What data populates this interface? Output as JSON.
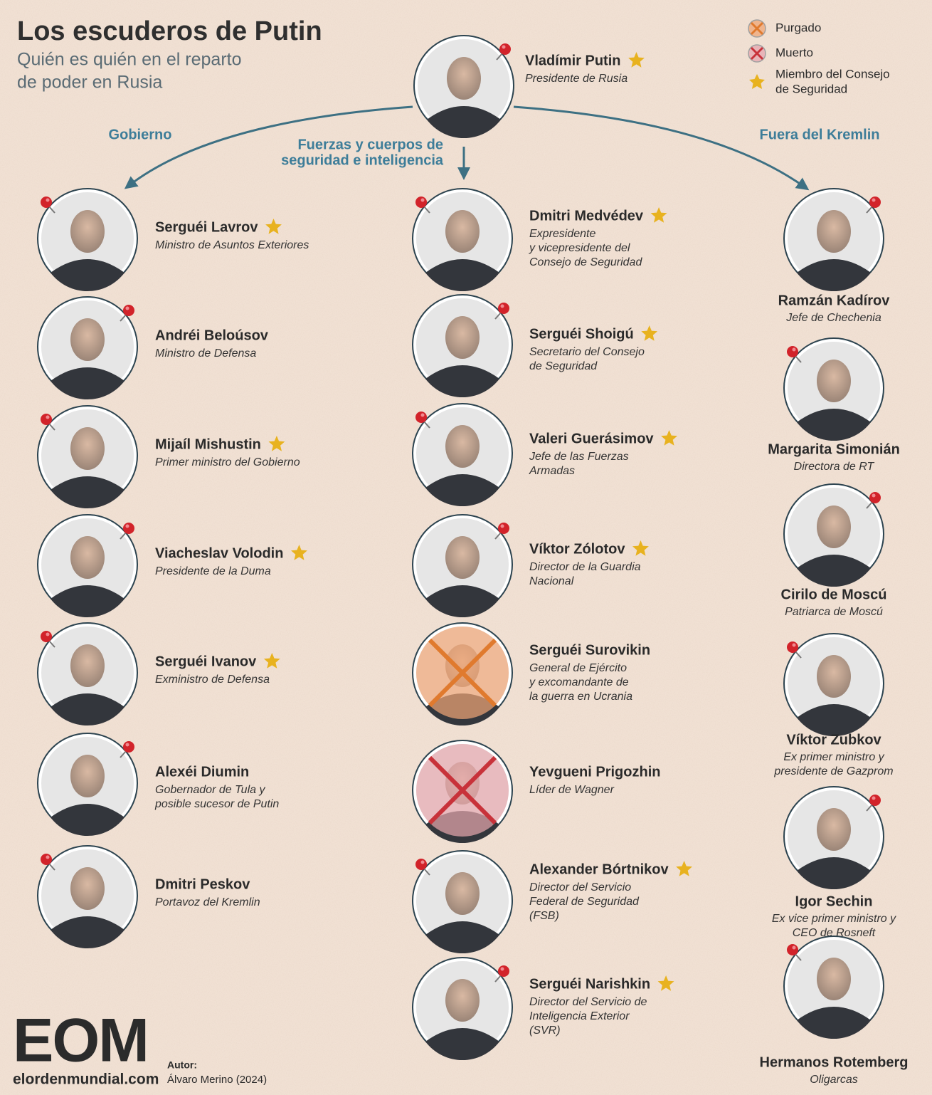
{
  "title": "Los escuderos de Putin",
  "subtitle": [
    "Quién es quién en el reparto",
    "de poder en Rusia"
  ],
  "legend": {
    "purged": "Purgado",
    "dead": "Muerto",
    "council": [
      "Miembro del Consejo",
      "de Seguridad"
    ]
  },
  "leader": {
    "name": "Vladímir Putin",
    "role": [
      "Presidente de Rusia"
    ],
    "council": true
  },
  "branches": [
    {
      "label": [
        "Gobierno"
      ],
      "people": [
        {
          "name": "Serguéi Lavrov",
          "role": [
            "Ministro de Asuntos Exteriores"
          ],
          "council": true
        },
        {
          "name": "Andréi Beloúsov",
          "role": [
            "Ministro de Defensa"
          ],
          "council": false
        },
        {
          "name": "Mijaíl Mishustin",
          "role": [
            "Primer ministro del Gobierno"
          ],
          "council": true
        },
        {
          "name": "Viacheslav Volodin",
          "role": [
            "Presidente de la Duma"
          ],
          "council": true
        },
        {
          "name": "Serguéi Ivanov",
          "role": [
            "Exministro de Defensa"
          ],
          "council": true
        },
        {
          "name": "Alexéi Diumin",
          "role": [
            "Gobernador de Tula y",
            "posible sucesor de Putin"
          ],
          "council": false
        },
        {
          "name": "Dmitri Peskov",
          "role": [
            "Portavoz del Kremlin"
          ],
          "council": false
        }
      ]
    },
    {
      "label": [
        "Fuerzas y cuerpos de",
        "seguridad e inteligencia"
      ],
      "people": [
        {
          "name": "Dmitri Medvédev",
          "role": [
            "Expresidente",
            "y vicepresidente del",
            "Consejo de Seguridad"
          ],
          "council": true
        },
        {
          "name": "Serguéi Shoigú",
          "role": [
            "Secretario del Consejo",
            "de Seguridad"
          ],
          "council": true
        },
        {
          "name": "Valeri Guerásimov",
          "role": [
            "Jefe de las Fuerzas",
            "Armadas"
          ],
          "council": true
        },
        {
          "name": "Víktor Zólotov",
          "role": [
            "Director de la Guardia",
            "Nacional"
          ],
          "council": true
        },
        {
          "name": "Serguéi Surovikin",
          "role": [
            "General de Ejército",
            "y excomandante de",
            "la guerra en Ucrania"
          ],
          "council": false,
          "purged": true
        },
        {
          "name": "Yevgueni Prigozhin",
          "role": [
            "Líder de Wagner"
          ],
          "council": false,
          "dead": true
        },
        {
          "name": "Alexander Bórtnikov",
          "role": [
            "Director del Servicio",
            "Federal de Seguridad",
            "(FSB)"
          ],
          "council": true
        },
        {
          "name": "Serguéi Narishkin",
          "role": [
            "Director del Servicio de",
            "Inteligencia Exterior",
            "(SVR)"
          ],
          "council": true
        }
      ]
    },
    {
      "label": [
        "Fuera del Kremlin"
      ],
      "people": [
        {
          "name": "Ramzán Kadírov",
          "role": [
            "Jefe de Chechenia"
          ],
          "council": false
        },
        {
          "name": "Margarita Simonián",
          "role": [
            "Directora de RT"
          ],
          "council": false
        },
        {
          "name": "Cirilo de Moscú",
          "role": [
            "Patriarca de Moscú"
          ],
          "council": false
        },
        {
          "name": "Víktor Zubkov",
          "role": [
            "Ex primer ministro y",
            "presidente de Gazprom"
          ],
          "council": false
        },
        {
          "name": "Igor Sechin",
          "role": [
            "Ex vice primer ministro y",
            "CEO de Rosneft"
          ],
          "council": false
        },
        {
          "name": "Hermanos Rotemberg",
          "role": [
            "Oligarcas"
          ],
          "council": false
        }
      ]
    }
  ],
  "footer": {
    "logo": "EOM",
    "site": "elordenmundial.com",
    "author_label": "Autor:",
    "author": "Álvaro Merino (2024)"
  }
}
